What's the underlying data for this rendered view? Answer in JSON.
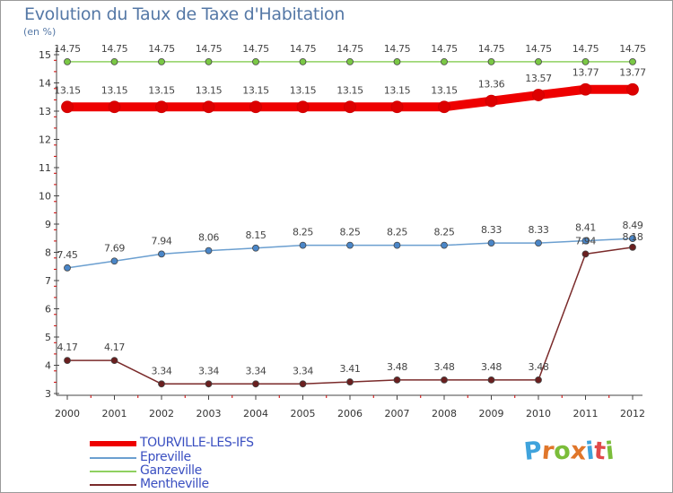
{
  "title": "Evolution du Taux de Taxe d'Habitation",
  "unit": "(en %)",
  "logo_text": "Proxiti",
  "colors": {
    "title": "#5578a6",
    "axis": "#444444",
    "tick": "#cc0000",
    "legend_text": "#3a4fc1"
  },
  "chart_data": {
    "type": "line",
    "title": "Evolution du Taux de Taxe d'Habitation",
    "ylabel": "(en %)",
    "xlabel": "",
    "ylim": [
      3,
      15
    ],
    "yticks": [
      "3",
      "4",
      "5",
      "6",
      "7",
      "8",
      "9",
      "10",
      "11",
      "12",
      "13",
      "14",
      "15"
    ],
    "x": [
      "2000",
      "2001",
      "2002",
      "2003",
      "2004",
      "2005",
      "2006",
      "2007",
      "2008",
      "2009",
      "2010",
      "2011",
      "2012"
    ],
    "series": [
      {
        "name": "TOURVILLE-LES-IFS",
        "color": "#ee0000",
        "marker": "#dd0000",
        "values": [
          13.15,
          13.15,
          13.15,
          13.15,
          13.15,
          13.15,
          13.15,
          13.15,
          13.15,
          13.36,
          13.57,
          13.77,
          13.77
        ],
        "labels": [
          "13.15",
          "13.15",
          "13.15",
          "13.15",
          "13.15",
          "13.15",
          "13.15",
          "13.15",
          "13.15",
          "13.36",
          "13.57",
          "13.77",
          "13.77"
        ]
      },
      {
        "name": "Epreville",
        "color": "#6b9fd0",
        "marker": "#4a86c8",
        "values": [
          7.45,
          7.69,
          7.94,
          8.06,
          8.15,
          8.25,
          8.25,
          8.25,
          8.25,
          8.33,
          8.33,
          8.41,
          8.49
        ],
        "labels": [
          "7.45",
          "7.69",
          "7.94",
          "8.06",
          "8.15",
          "8.25",
          "8.25",
          "8.25",
          "8.25",
          "8.33",
          "8.33",
          "8.41",
          "8.49"
        ]
      },
      {
        "name": "Ganzeville",
        "color": "#8fd060",
        "marker": "#7ac845",
        "values": [
          14.75,
          14.75,
          14.75,
          14.75,
          14.75,
          14.75,
          14.75,
          14.75,
          14.75,
          14.75,
          14.75,
          14.75,
          14.75
        ],
        "labels": [
          "14.75",
          "14.75",
          "14.75",
          "14.75",
          "14.75",
          "14.75",
          "14.75",
          "14.75",
          "14.75",
          "14.75",
          "14.75",
          "14.75",
          "14.75"
        ]
      },
      {
        "name": "Mentheville",
        "color": "#7a2a2a",
        "marker": "#6a1f1f",
        "values": [
          4.17,
          4.17,
          3.34,
          3.34,
          3.34,
          3.34,
          3.41,
          3.48,
          3.48,
          3.48,
          3.48,
          7.94,
          8.18
        ],
        "labels": [
          "4.17",
          "4.17",
          "3.34",
          "3.34",
          "3.34",
          "3.34",
          "3.41",
          "3.48",
          "3.48",
          "3.48",
          "3.48",
          "7.94",
          "8.18"
        ]
      }
    ]
  }
}
